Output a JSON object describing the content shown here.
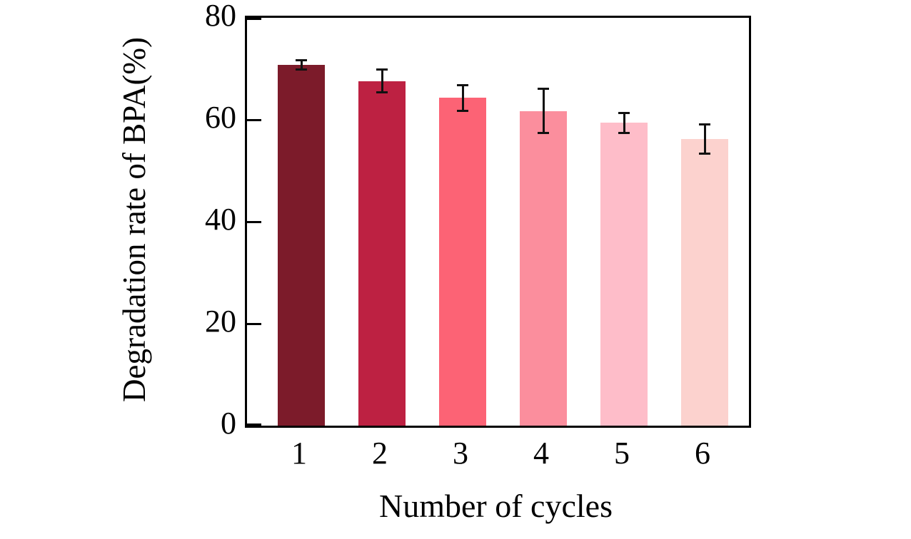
{
  "chart_data": {
    "type": "bar",
    "title": "",
    "xlabel": "Number of cycles",
    "ylabel": "Degradation rate of BPA(%)",
    "categories": [
      "1",
      "2",
      "3",
      "4",
      "5",
      "6"
    ],
    "values": [
      70.8,
      67.6,
      64.3,
      61.7,
      59.4,
      56.2
    ],
    "errors": [
      1.0,
      2.3,
      2.6,
      4.4,
      2.0,
      2.9
    ],
    "bar_colors": [
      "#7C1B2A",
      "#BD2142",
      "#FC6375",
      "#FB8E9D",
      "#FEBDC9",
      "#FCD2CE"
    ],
    "error_bar_color": "#111111",
    "axis_color": "#000000",
    "background_color": "#FFFFFF",
    "ylim": [
      0,
      80
    ],
    "yticks": [
      0,
      20,
      40,
      60,
      80
    ],
    "grid": false,
    "legend_position": "none",
    "frame": "full-box-with-inward-ticks"
  }
}
